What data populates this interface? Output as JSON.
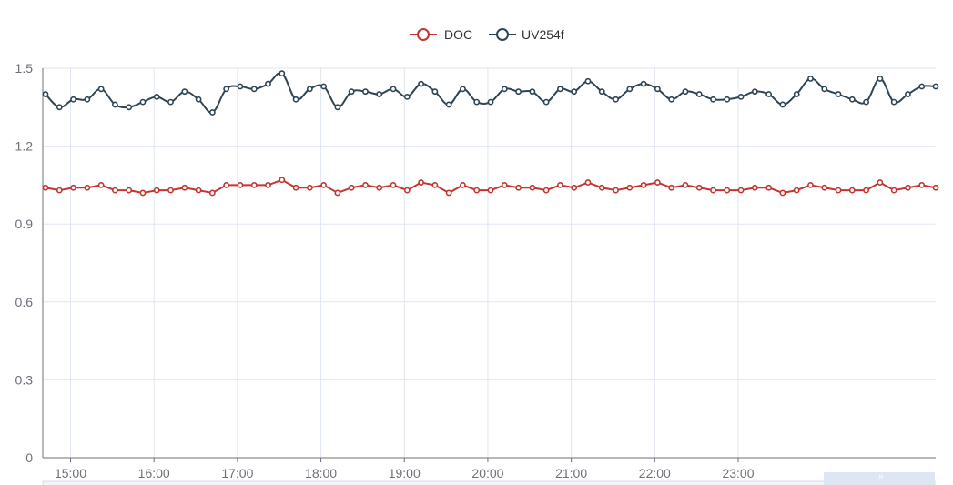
{
  "chart_data": {
    "type": "line",
    "title": "",
    "xlabel": "",
    "ylabel": "",
    "x_start": "14:42",
    "x_step_minutes": 10,
    "x_ticks": [
      "15:00",
      "16:00",
      "17:00",
      "18:00",
      "19:00",
      "20:00",
      "21:00",
      "22:00",
      "23:00"
    ],
    "y_ticks": [
      "0",
      "0.3",
      "0.6",
      "0.9",
      "1.2",
      "1.5"
    ],
    "ylim": [
      0,
      1.5
    ],
    "grid": true,
    "legend_position": "top-center",
    "series": [
      {
        "name": "DOC",
        "color": "#c23531",
        "smooth": false,
        "values": [
          1.04,
          1.03,
          1.04,
          1.04,
          1.05,
          1.03,
          1.03,
          1.02,
          1.03,
          1.03,
          1.04,
          1.03,
          1.02,
          1.05,
          1.05,
          1.05,
          1.05,
          1.07,
          1.04,
          1.04,
          1.05,
          1.02,
          1.04,
          1.05,
          1.04,
          1.05,
          1.03,
          1.06,
          1.05,
          1.02,
          1.05,
          1.03,
          1.03,
          1.05,
          1.04,
          1.04,
          1.03,
          1.05,
          1.04,
          1.06,
          1.04,
          1.03,
          1.04,
          1.05,
          1.06,
          1.04,
          1.05,
          1.04,
          1.03,
          1.03,
          1.03,
          1.04,
          1.04,
          1.02,
          1.03,
          1.05,
          1.04,
          1.03,
          1.03,
          1.03,
          1.06,
          1.03,
          1.04,
          1.05,
          1.04
        ]
      },
      {
        "name": "UV254f",
        "color": "#2f4554",
        "smooth": true,
        "values": [
          1.4,
          1.35,
          1.38,
          1.38,
          1.42,
          1.36,
          1.35,
          1.37,
          1.39,
          1.37,
          1.41,
          1.38,
          1.33,
          1.42,
          1.43,
          1.42,
          1.44,
          1.48,
          1.38,
          1.42,
          1.43,
          1.35,
          1.41,
          1.41,
          1.4,
          1.42,
          1.39,
          1.44,
          1.41,
          1.36,
          1.42,
          1.37,
          1.37,
          1.42,
          1.41,
          1.41,
          1.37,
          1.42,
          1.41,
          1.45,
          1.41,
          1.38,
          1.42,
          1.44,
          1.42,
          1.38,
          1.41,
          1.4,
          1.38,
          1.38,
          1.39,
          1.41,
          1.4,
          1.36,
          1.4,
          1.46,
          1.42,
          1.4,
          1.38,
          1.37,
          1.46,
          1.37,
          1.4,
          1.43,
          1.43
        ]
      }
    ]
  }
}
